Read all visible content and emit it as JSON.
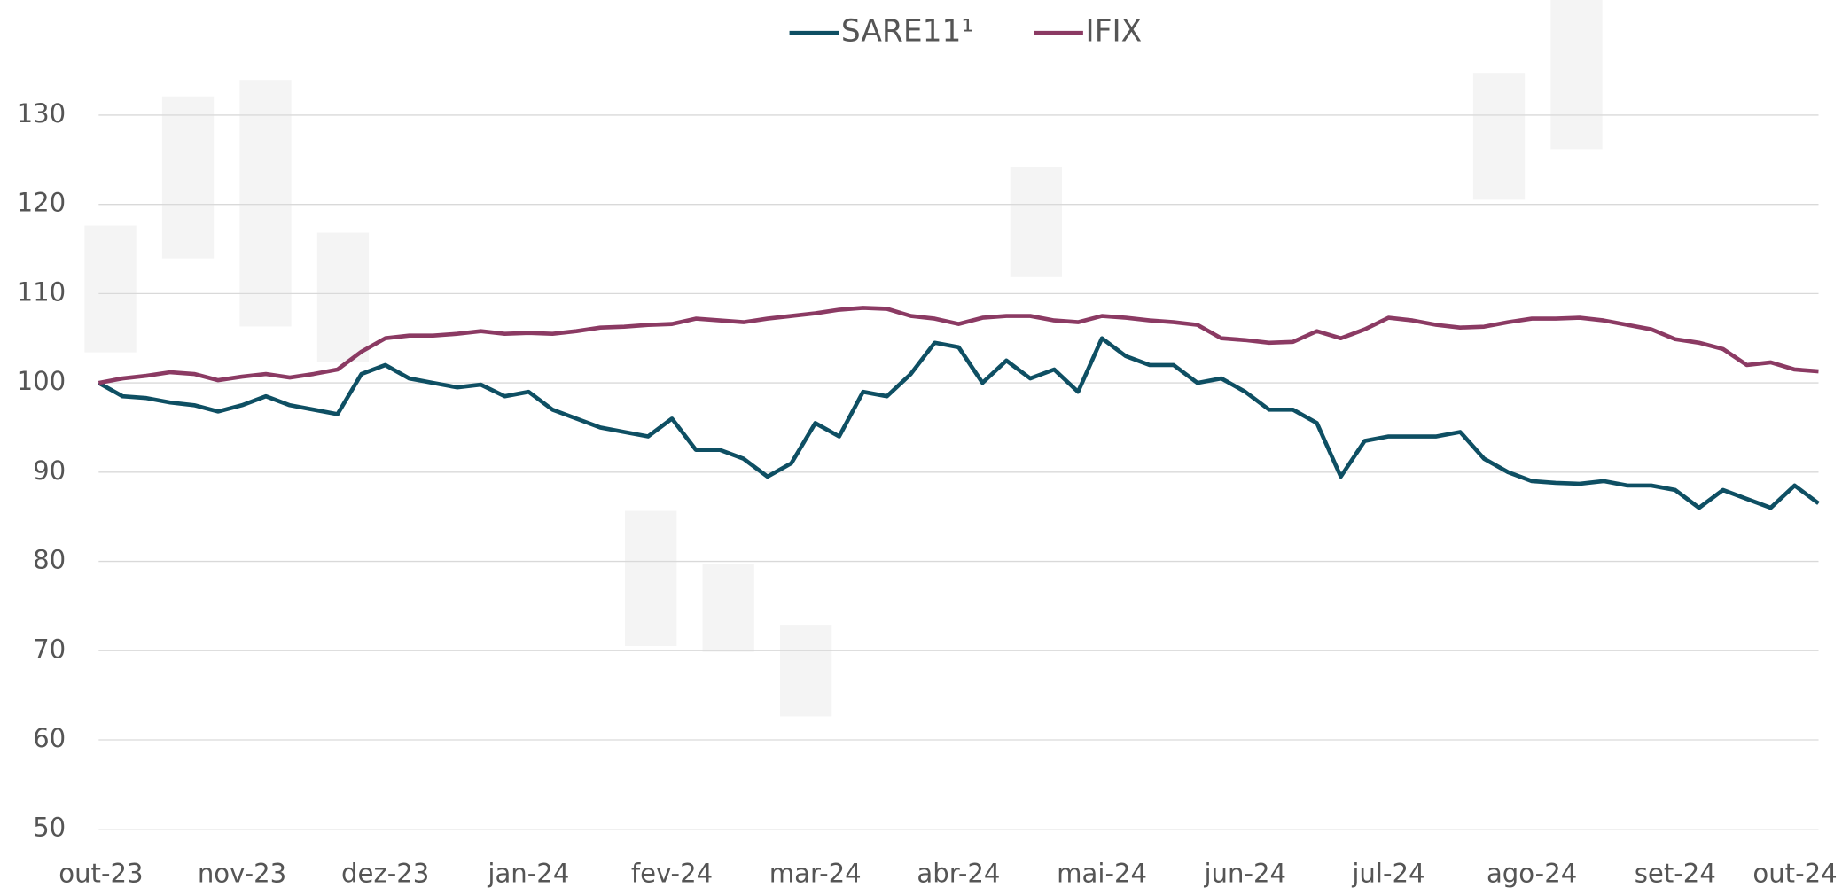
{
  "chart_data": {
    "type": "line",
    "categories": [
      "out-23",
      null,
      null,
      null,
      null,
      null,
      "nov-23",
      null,
      null,
      null,
      null,
      null,
      "dez-23",
      null,
      null,
      null,
      null,
      null,
      "jan-24",
      null,
      null,
      null,
      null,
      null,
      "fev-24",
      null,
      null,
      null,
      null,
      null,
      "mar-24",
      null,
      null,
      null,
      null,
      null,
      "abr-24",
      null,
      null,
      null,
      null,
      null,
      "mai-24",
      null,
      null,
      null,
      null,
      null,
      "jun-24",
      null,
      null,
      null,
      null,
      null,
      "jul-24",
      null,
      null,
      null,
      null,
      null,
      "ago-24",
      null,
      null,
      null,
      null,
      null,
      "set-24",
      null,
      null,
      null,
      null,
      null,
      "out-24"
    ],
    "series": [
      {
        "name": "SARE11¹",
        "color": "#0e4f63",
        "values": [
          100,
          98.5,
          98.3,
          97.8,
          97.5,
          96.8,
          97.5,
          98.5,
          97.5,
          97,
          96.5,
          101,
          102,
          100.5,
          100,
          99.5,
          99.8,
          98.5,
          99,
          97,
          96,
          95,
          94.5,
          94,
          96,
          92.5,
          92.5,
          91.5,
          89.5,
          91,
          95.5,
          94,
          99,
          98.5,
          101,
          104.5,
          104,
          100,
          102.5,
          100.5,
          101.5,
          99,
          105,
          103,
          102,
          102,
          100,
          100.5,
          99,
          97,
          97,
          95.5,
          89.5,
          93.5,
          94,
          94,
          94,
          94.5,
          91.5,
          90,
          89,
          88.8,
          88.7,
          89,
          88.5,
          88.5,
          88,
          86,
          88,
          87,
          86,
          88.5,
          86.5
        ]
      },
      {
        "name": "IFIX",
        "color": "#8b3a63",
        "values": [
          100,
          100.5,
          100.8,
          101.2,
          101,
          100.3,
          100.7,
          101,
          100.6,
          101,
          101.5,
          103.5,
          105,
          105.3,
          105.3,
          105.5,
          105.8,
          105.5,
          105.6,
          105.5,
          105.8,
          106.2,
          106.3,
          106.5,
          106.6,
          107.2,
          107,
          106.8,
          107.2,
          107.5,
          107.8,
          108.2,
          108.4,
          108.3,
          107.5,
          107.2,
          106.6,
          107.3,
          107.5,
          107.5,
          107,
          106.8,
          107.5,
          107.3,
          107,
          106.8,
          106.5,
          105,
          104.8,
          104.5,
          104.6,
          105.8,
          105,
          106,
          107.3,
          107,
          106.5,
          106.2,
          106.3,
          106.8,
          107.2,
          107.2,
          107.3,
          107,
          106.5,
          106,
          104.9,
          104.5,
          103.8,
          102,
          102.3,
          101.5,
          101.3
        ]
      }
    ],
    "ylim": [
      50,
      130
    ],
    "yticks": [
      50,
      60,
      70,
      80,
      90,
      100,
      110,
      120,
      130
    ],
    "grid": true,
    "legend": "top"
  }
}
